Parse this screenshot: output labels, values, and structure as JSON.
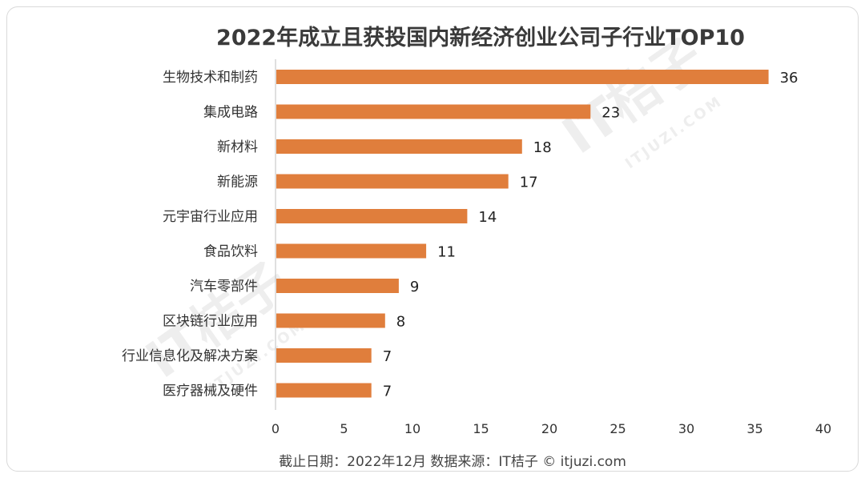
{
  "chart_data": {
    "type": "bar",
    "orientation": "horizontal",
    "title": "2022年成立且获投国内新经济创业公司子行业TOP10",
    "categories": [
      "生物技术和制药",
      "集成电路",
      "新材料",
      "新能源",
      "元宇宙行业应用",
      "食品饮料",
      "汽车零部件",
      "区块链行业应用",
      "行业信息化及解决方案",
      "医疗器械及硬件"
    ],
    "values": [
      36,
      23,
      18,
      17,
      14,
      11,
      9,
      8,
      7,
      7
    ],
    "xlim": [
      0,
      40
    ],
    "xticks": [
      0,
      5,
      10,
      15,
      20,
      25,
      30,
      35,
      40
    ],
    "grid": false,
    "legend": "none",
    "bar_color": "#e07e3c"
  },
  "footer": {
    "text": "截止日期：2022年12月    数据来源：IT桔子 © itjuzi.com"
  },
  "watermark": {
    "logo": "IT桔子",
    "site": "ITJUZI.COM"
  }
}
